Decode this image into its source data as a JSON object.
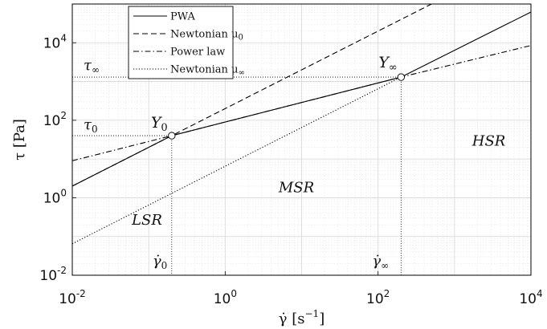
{
  "chart_data": {
    "type": "line",
    "x_scale": "log",
    "y_scale": "log",
    "xlim": [
      0.01,
      10000
    ],
    "ylim": [
      0.01,
      100000
    ],
    "x_ticks": [
      {
        "base": "10",
        "exp": "-2"
      },
      {
        "base": "10",
        "exp": "0"
      },
      {
        "base": "10",
        "exp": "2"
      },
      {
        "base": "10",
        "exp": "4"
      }
    ],
    "y_ticks": [
      {
        "base": "10",
        "exp": "-2"
      },
      {
        "base": "10",
        "exp": "0"
      },
      {
        "base": "10",
        "exp": "2"
      },
      {
        "base": "10",
        "exp": "4"
      }
    ],
    "xlabel": {
      "main": "γ̇ [s",
      "sup": "−1",
      "close": "]"
    },
    "ylabel": "τ [Pa]",
    "grid": true,
    "minor_grid": true,
    "legend_position": "top-left",
    "series": [
      {
        "name": "PWA",
        "style": "solid",
        "x": [
          0.01,
          0.2,
          200,
          10000
        ],
        "y": [
          2.0,
          40,
          1300,
          62000
        ]
      },
      {
        "name": "Newtonian μ",
        "name_sub": "0",
        "style": "dashed",
        "x": [
          0.01,
          500
        ],
        "y": [
          2.0,
          100000
        ]
      },
      {
        "name": "Power law",
        "style": "dashdot",
        "x": [
          0.01,
          0.2,
          200,
          10000
        ],
        "y": [
          9.0,
          40,
          1300,
          8500
        ]
      },
      {
        "name": "Newtonian μ",
        "name_sub": "∞",
        "style": "dotted",
        "x": [
          0.01,
          200
        ],
        "y": [
          0.065,
          1300
        ]
      }
    ],
    "points": [
      {
        "label": "Y",
        "sub": "0",
        "x": 0.2,
        "y": 40
      },
      {
        "label": "Y",
        "sub": "∞",
        "x": 200,
        "y": 1300
      }
    ],
    "reference_lines": [
      {
        "label": "τ",
        "sub": "0",
        "axis": "y",
        "value": 40
      },
      {
        "label": "τ",
        "sub": "∞",
        "axis": "y",
        "value": 1300
      },
      {
        "label": "γ̇",
        "sub": "0",
        "axis": "x",
        "value": 0.2
      },
      {
        "label": "γ̇",
        "sub": "∞",
        "axis": "x",
        "value": 200
      }
    ],
    "regions": [
      {
        "label": "LSR",
        "x": 0.06,
        "y": 0.2
      },
      {
        "label": "MSR",
        "x": 5,
        "y": 1.4
      },
      {
        "label": "HSR",
        "x": 1700,
        "y": 22
      }
    ]
  }
}
